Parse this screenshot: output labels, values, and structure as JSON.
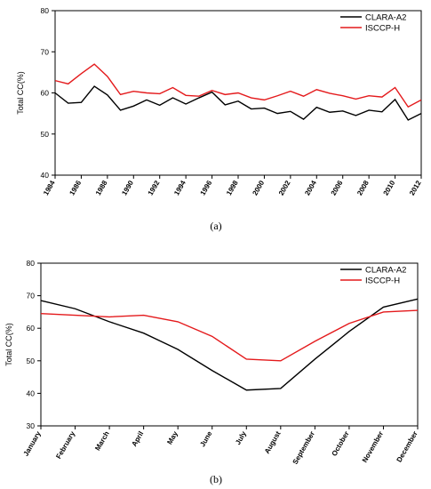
{
  "chart_data": [
    {
      "type": "line",
      "panel_label": "(a)",
      "ylabel": "Total CC(%)",
      "ylim": [
        40,
        80
      ],
      "yticks": [
        40,
        50,
        60,
        70,
        80
      ],
      "x": [
        1984,
        1985,
        1986,
        1987,
        1988,
        1989,
        1990,
        1991,
        1992,
        1993,
        1994,
        1995,
        1996,
        1997,
        1998,
        1999,
        2000,
        2001,
        2002,
        2003,
        2004,
        2005,
        2006,
        2007,
        2008,
        2009,
        2010,
        2011,
        2012
      ],
      "xtick_labels": [
        "1984",
        "1986",
        "1988",
        "1990",
        "1992",
        "1994",
        "1996",
        "1998",
        "2000",
        "2002",
        "2004",
        "2006",
        "2008",
        "2010",
        "2012"
      ],
      "legend_position": "top-right",
      "series": [
        {
          "name": "CLARA-A2",
          "color": "#000000",
          "values": [
            60.0,
            57.5,
            57.7,
            61.6,
            59.5,
            55.8,
            56.8,
            58.3,
            57.0,
            58.8,
            57.3,
            58.8,
            60.2,
            57.1,
            58.0,
            56.1,
            56.3,
            55.0,
            55.5,
            53.6,
            56.5,
            55.3,
            55.6,
            54.5,
            55.8,
            55.4,
            58.4,
            53.4,
            55.0
          ]
        },
        {
          "name": "ISCCP-H",
          "color": "#e41a1c",
          "values": [
            63.0,
            62.2,
            64.7,
            67.0,
            64.0,
            59.6,
            60.4,
            60.0,
            59.8,
            61.3,
            59.4,
            59.2,
            60.6,
            59.6,
            60.0,
            58.8,
            58.3,
            59.3,
            60.4,
            59.2,
            60.8,
            59.9,
            59.3,
            58.5,
            59.3,
            59.0,
            61.3,
            56.6,
            58.3
          ]
        }
      ]
    },
    {
      "type": "line",
      "panel_label": "(b)",
      "ylabel": "Total CC(%)",
      "ylim": [
        30,
        80
      ],
      "yticks": [
        30,
        40,
        50,
        60,
        70,
        80
      ],
      "categories": [
        "January",
        "February",
        "March",
        "April",
        "May",
        "June",
        "July",
        "August",
        "September",
        "October",
        "November",
        "December"
      ],
      "legend_position": "top-right",
      "series": [
        {
          "name": "CLARA-A2",
          "color": "#000000",
          "values": [
            68.5,
            66.0,
            62.0,
            58.5,
            53.5,
            47.0,
            41.0,
            41.5,
            50.5,
            59.0,
            66.5,
            69.0
          ]
        },
        {
          "name": "ISCCP-H",
          "color": "#e41a1c",
          "values": [
            64.5,
            64.0,
            63.5,
            64.0,
            62.0,
            57.5,
            50.5,
            50.0,
            56.0,
            61.5,
            65.0,
            65.5
          ]
        }
      ]
    }
  ]
}
